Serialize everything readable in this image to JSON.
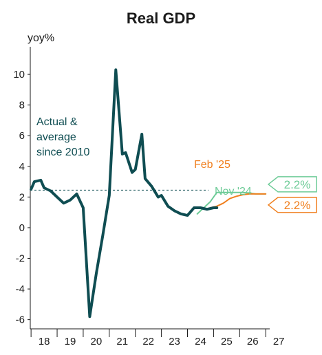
{
  "chart_data": {
    "type": "line",
    "title": "Real GDP",
    "ylabel": "yoy%",
    "xlabel": "",
    "ylim": [
      -6.6,
      11.8
    ],
    "xlim": [
      2017.97,
      2027.1
    ],
    "yticks": [
      10,
      8,
      6,
      4,
      2,
      0,
      -2,
      -4,
      -6
    ],
    "xticks": [
      {
        "label": "18",
        "at": 2018.5
      },
      {
        "label": "19",
        "at": 2019.5
      },
      {
        "label": "20",
        "at": 2020.5
      },
      {
        "label": "21",
        "at": 2021.5
      },
      {
        "label": "22",
        "at": 2022.5
      },
      {
        "label": "23",
        "at": 2023.5
      },
      {
        "label": "24",
        "at": 2024.5
      },
      {
        "label": "25",
        "at": 2025.5
      },
      {
        "label": "26",
        "at": 2026.5
      },
      {
        "label": "27",
        "at": 2027.5
      }
    ],
    "grid": false,
    "series": [
      {
        "name": "Actual & average since 2010",
        "color": "#0f4d52",
        "style": "solid-thick",
        "x": [
          2018.0,
          2018.125,
          2018.375,
          2018.5,
          2018.75,
          2019.0,
          2019.25,
          2019.5,
          2019.75,
          2020.0,
          2020.25,
          2020.5,
          2020.75,
          2021.0,
          2021.25,
          2021.5,
          2021.625,
          2021.875,
          2022.0,
          2022.25,
          2022.375,
          2022.625,
          2022.875,
          2023.0,
          2023.25,
          2023.5,
          2023.75,
          2024.0,
          2024.25,
          2024.5,
          2024.75,
          2025.0,
          2025.125
        ],
        "values": [
          2.5,
          3.0,
          3.1,
          2.6,
          2.4,
          2.0,
          1.6,
          1.8,
          2.2,
          1.3,
          -5.8,
          -3.0,
          -0.5,
          2.1,
          10.3,
          4.8,
          4.9,
          3.6,
          3.8,
          6.1,
          3.2,
          2.7,
          2.0,
          2.1,
          1.4,
          1.1,
          0.9,
          0.8,
          1.3,
          1.3,
          1.2,
          1.3,
          1.3
        ],
        "average": 2.45
      },
      {
        "name": "Nov '24",
        "color": "#6dcb97",
        "style": "solid",
        "x": [
          2024.375,
          2024.625,
          2024.875,
          2025.125,
          2025.375,
          2025.625,
          2025.875,
          2026.125,
          2026.375,
          2026.625,
          2026.875,
          2027.0
        ],
        "values": [
          0.9,
          1.3,
          1.7,
          2.3,
          2.3,
          2.3,
          2.3,
          2.3,
          2.25,
          2.2,
          2.2,
          2.2
        ],
        "end_label": "2.2%"
      },
      {
        "name": "Feb '25",
        "color": "#f07f1e",
        "style": "solid",
        "x": [
          2024.875,
          2025.125,
          2025.375,
          2025.625,
          2025.875,
          2026.125,
          2026.375,
          2026.625,
          2026.875,
          2027.0
        ],
        "values": [
          1.3,
          1.4,
          1.6,
          1.9,
          2.05,
          2.15,
          2.2,
          2.2,
          2.2,
          2.2
        ],
        "end_label": "2.2%"
      }
    ],
    "annotations": {
      "actual": [
        "Actual &",
        "average",
        "since 2010"
      ]
    }
  }
}
